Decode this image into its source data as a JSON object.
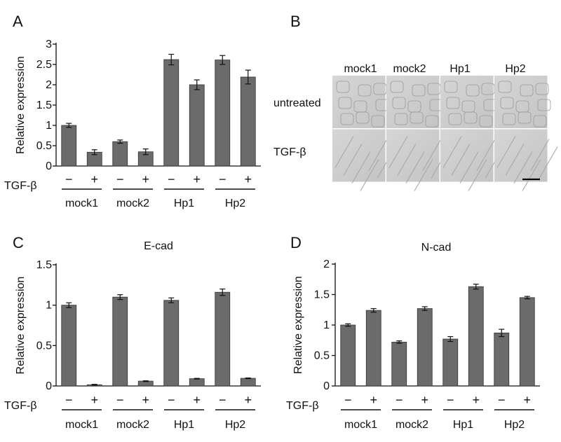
{
  "colors": {
    "bar_fill": "#6b6b6b",
    "bar_stroke": "#333333",
    "axis": "#111111",
    "image_background": "#cfcfcf",
    "image_divider": "#ffffff"
  },
  "figure": {
    "condition_label": "TGF-β",
    "minus_symbol": "−",
    "plus_symbol": "+"
  },
  "microscopy": {
    "panel_letter": "B",
    "column_labels": [
      "mock1",
      "mock2",
      "Hp1",
      "Hp2"
    ],
    "row_labels": [
      "untreated",
      "TGF-β"
    ],
    "scale_bar": true
  },
  "chart_data": [
    {
      "panel_letter": "A",
      "type": "bar",
      "title": "",
      "xlabel": "",
      "ylabel": "Relative expression",
      "ylim": [
        0,
        3
      ],
      "yticks": [
        0,
        0.5,
        1,
        1.5,
        2,
        2.5,
        3
      ],
      "ytick_labels": [
        "0",
        "0.5",
        "1",
        "1.5",
        "2",
        "2.5",
        "3"
      ],
      "groups": [
        "mock1",
        "mock2",
        "Hp1",
        "Hp2"
      ],
      "conditions": [
        "−",
        "+"
      ],
      "values": [
        1.0,
        0.34,
        0.6,
        0.35,
        2.62,
        2.0,
        2.61,
        2.19
      ],
      "errors": [
        0.05,
        0.06,
        0.04,
        0.07,
        0.13,
        0.12,
        0.11,
        0.17
      ],
      "grid": false
    },
    {
      "panel_letter": "C",
      "type": "bar",
      "title": "E-cad",
      "xlabel": "",
      "ylabel": "Relative expression",
      "ylim": [
        0,
        1.5
      ],
      "yticks": [
        0,
        0.5,
        1,
        1.5
      ],
      "ytick_labels": [
        "0",
        "0.5",
        "1",
        "1.5"
      ],
      "groups": [
        "mock1",
        "mock2",
        "Hp1",
        "Hp2"
      ],
      "conditions": [
        "−",
        "+"
      ],
      "values": [
        1.0,
        0.015,
        1.1,
        0.06,
        1.06,
        0.09,
        1.16,
        0.095
      ],
      "errors": [
        0.03,
        0.005,
        0.03,
        0.004,
        0.03,
        0.004,
        0.04,
        0.004
      ],
      "grid": false
    },
    {
      "panel_letter": "D",
      "type": "bar",
      "title": "N-cad",
      "xlabel": "",
      "ylabel": "Relative expression",
      "ylim": [
        0,
        2
      ],
      "yticks": [
        0,
        0.5,
        1,
        1.5,
        2
      ],
      "ytick_labels": [
        "0",
        "0.5",
        "1",
        "1.5",
        "2"
      ],
      "groups": [
        "mock1",
        "mock2",
        "Hp1",
        "Hp2"
      ],
      "conditions": [
        "−",
        "+"
      ],
      "values": [
        1.0,
        1.24,
        0.72,
        1.27,
        0.77,
        1.63,
        0.87,
        1.45
      ],
      "errors": [
        0.02,
        0.03,
        0.02,
        0.03,
        0.04,
        0.04,
        0.06,
        0.02
      ],
      "grid": false
    }
  ]
}
